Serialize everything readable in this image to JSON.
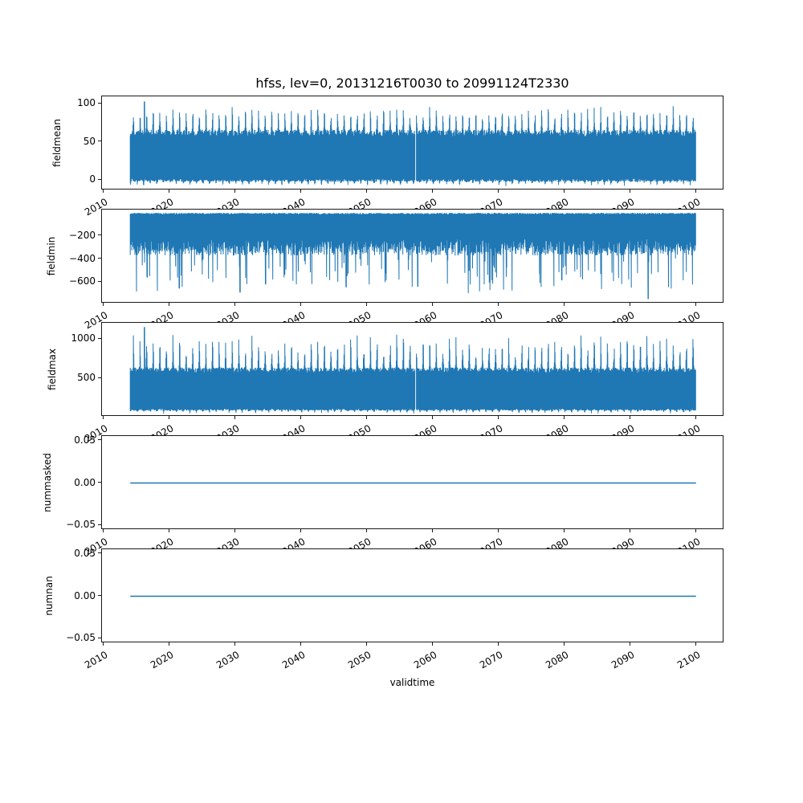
{
  "figure": {
    "title": "hfss, lev=0, 20131216T0030 to 20991124T2330",
    "background": "#ffffff",
    "line_color": "#1f77b4"
  },
  "chart_data": {
    "type": "line",
    "layout": "5 stacked panels, shared x axis",
    "title": "hfss, lev=0, 20131216T0030 to 20991124T2330",
    "xlabel": "validtime",
    "x": {
      "lim": [
        2009.66,
        2104.2
      ],
      "ticks": [
        2010,
        2020,
        2030,
        2040,
        2050,
        2060,
        2070,
        2080,
        2090,
        2100
      ],
      "tick_labels": [
        "2010",
        "2020",
        "2030",
        "2040",
        "2050",
        "2060",
        "2070",
        "2080",
        "2090",
        "2100"
      ],
      "tick_rotation_deg": 30,
      "data_start": 2013.96,
      "data_end": 2099.9
    },
    "panels": [
      {
        "name": "fieldmean",
        "ylabel": "fieldmean",
        "ylim": [
          -13.7,
          109.7
        ],
        "yticks": {
          "values": [
            0,
            50,
            100
          ],
          "labels": [
            "0",
            "50",
            "100"
          ]
        },
        "series": {
          "kind": "band",
          "seed": 101,
          "samples_per_year": 17,
          "upper": {
            "base": 57,
            "noise": 9,
            "annual_amp_min": 20,
            "annual_amp_rand": 14,
            "peak_phase": 0.45,
            "peak_width": 0.05
          },
          "lower": {
            "base": 1.5,
            "noise": 4,
            "dip_amp": 6,
            "dip_width": 0.06
          },
          "spikes": [
            {
              "x": 2016.05,
              "v": 103,
              "dir": "up"
            }
          ],
          "gaps": [
            {
              "x": 2057.3,
              "w": 0.16
            }
          ]
        },
        "summary": {
          "lower_envelope": [
            -8,
            3
          ],
          "upper_envelope": [
            55,
            85
          ],
          "max": 103,
          "max_at": 2016
        }
      },
      {
        "name": "fieldmin",
        "ylabel": "fieldmin",
        "ylim": [
          -786,
          28
        ],
        "yticks": {
          "values": [
            -200,
            -400,
            -600
          ],
          "labels": [
            "−200",
            "−400",
            "−600"
          ]
        },
        "series": {
          "kind": "band",
          "seed": 202,
          "samples_per_year": 17,
          "upper": {
            "base": -14,
            "noise": 14
          },
          "lower": {
            "base": -225,
            "noise": 145,
            "deep_prob": 0.09,
            "deep_min": 120,
            "deep_rand": 230
          },
          "spikes": [
            {
              "x": 2021.4,
              "v": -655,
              "dir": "down"
            },
            {
              "x": 2030.6,
              "v": -690,
              "dir": "down"
            },
            {
              "x": 2034.5,
              "v": -620,
              "dir": "down"
            },
            {
              "x": 2046.7,
              "v": -645,
              "dir": "down"
            },
            {
              "x": 2057.6,
              "v": -640,
              "dir": "down"
            },
            {
              "x": 2068.5,
              "v": -605,
              "dir": "down"
            },
            {
              "x": 2079.5,
              "v": -585,
              "dir": "down"
            },
            {
              "x": 2092.6,
              "v": -748,
              "dir": "down"
            }
          ],
          "gaps": []
        },
        "summary": {
          "upper_envelope": [
            -40,
            -14
          ],
          "typical_lower": [
            -450,
            -250
          ],
          "min": -748,
          "min_at": 2093
        }
      },
      {
        "name": "fieldmax",
        "ylabel": "fieldmax",
        "ylim": [
          16,
          1204
        ],
        "yticks": {
          "values": [
            500,
            1000
          ],
          "labels": [
            "500",
            "1000"
          ]
        },
        "series": {
          "kind": "band",
          "seed": 303,
          "samples_per_year": 17,
          "upper": {
            "base": 570,
            "noise": 70,
            "annual_amp_min": 180,
            "annual_amp_rand": 280,
            "peak_phase": 0.45,
            "peak_width": 0.05
          },
          "lower": {
            "base": 118,
            "noise": 25,
            "dip_amp": 40,
            "dip_width": 0.06
          },
          "spikes": [
            {
              "x": 2016.05,
              "v": 1150,
              "dir": "up"
            }
          ],
          "gaps": [
            {
              "x": 2057.3,
              "w": 0.16
            }
          ]
        },
        "summary": {
          "lower_envelope": [
            75,
            145
          ],
          "upper_envelope": [
            560,
            1030
          ],
          "max": 1150,
          "max_at": 2016
        }
      },
      {
        "name": "nummasked",
        "ylabel": "nummasked",
        "ylim": [
          -0.0555,
          0.0555
        ],
        "yticks": {
          "values": [
            0.05,
            0,
            -0.05
          ],
          "labels": [
            "0.05",
            "0.00",
            "−0.05"
          ]
        },
        "series": {
          "kind": "flat",
          "value": 0,
          "linewidth": 1.6
        },
        "summary": {
          "constant": 0
        }
      },
      {
        "name": "numnan",
        "ylabel": "numnan",
        "ylim": [
          -0.0555,
          0.0555
        ],
        "yticks": {
          "values": [
            0.05,
            0,
            -0.05
          ],
          "labels": [
            "0.05",
            "0.00",
            "−0.05"
          ]
        },
        "series": {
          "kind": "flat",
          "value": 0,
          "linewidth": 1.6
        },
        "summary": {
          "constant": 0
        }
      }
    ]
  }
}
